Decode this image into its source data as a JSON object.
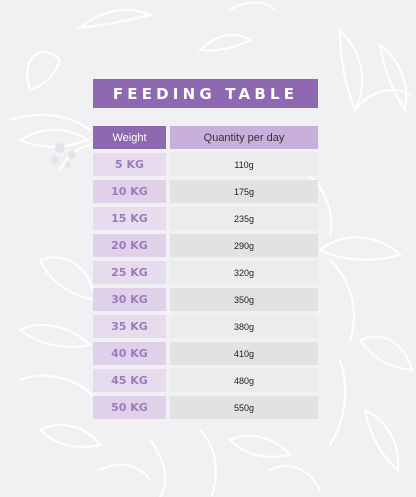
{
  "title": "FEEDING TABLE",
  "columns": {
    "weight": "Weight",
    "quantity": "Quantity per day"
  },
  "rows": [
    {
      "weight": "5 KG",
      "quantity": "110g"
    },
    {
      "weight": "10 KG",
      "quantity": "175g"
    },
    {
      "weight": "15 KG",
      "quantity": "235g"
    },
    {
      "weight": "20 KG",
      "quantity": "290g"
    },
    {
      "weight": "25 KG",
      "quantity": "320g"
    },
    {
      "weight": "30 KG",
      "quantity": "350g"
    },
    {
      "weight": "35 KG",
      "quantity": "380g"
    },
    {
      "weight": "40 KG",
      "quantity": "410g"
    },
    {
      "weight": "45 KG",
      "quantity": "480g"
    },
    {
      "weight": "50 KG",
      "quantity": "550g"
    }
  ],
  "colors": {
    "accent": "#8e68b0",
    "header_light": "#c9afdc",
    "weight_cell": "#e7dcee",
    "weight_text": "#9b7bbb",
    "background": "#f1f0f2"
  }
}
